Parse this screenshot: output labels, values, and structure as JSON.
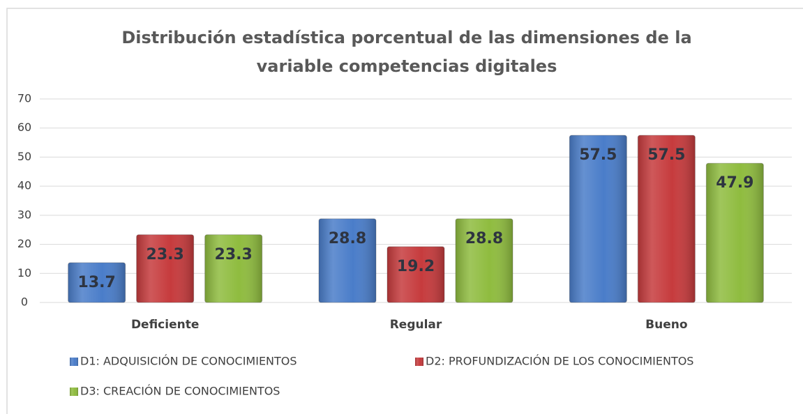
{
  "chart_data": {
    "type": "bar",
    "title": [
      "Distribución estadística porcentual  de las dimensiones de la",
      "variable competencias digitales"
    ],
    "categories": [
      "Deficiente",
      "Regular",
      "Bueno"
    ],
    "series": [
      {
        "name": "D1: ADQUISICIÓN DE CONOCIMIENTOS",
        "color": "#4a7dc9",
        "values": [
          13.7,
          28.8,
          57.5
        ]
      },
      {
        "name": "D2: PROFUNDIZACIÓN DE LOS CONOCIMIENTOS",
        "color": "#c63b3d",
        "values": [
          23.3,
          19.2,
          57.5
        ]
      },
      {
        "name": "D3: CREACIÓN DE CONOCIMIENTOS",
        "color": "#8fbc3f",
        "values": [
          23.3,
          28.8,
          47.9
        ]
      }
    ],
    "ylim": [
      0,
      70
    ],
    "yticks": [
      0,
      10,
      20,
      30,
      40,
      50,
      60,
      70
    ],
    "grid": true,
    "legend": "bottom"
  }
}
